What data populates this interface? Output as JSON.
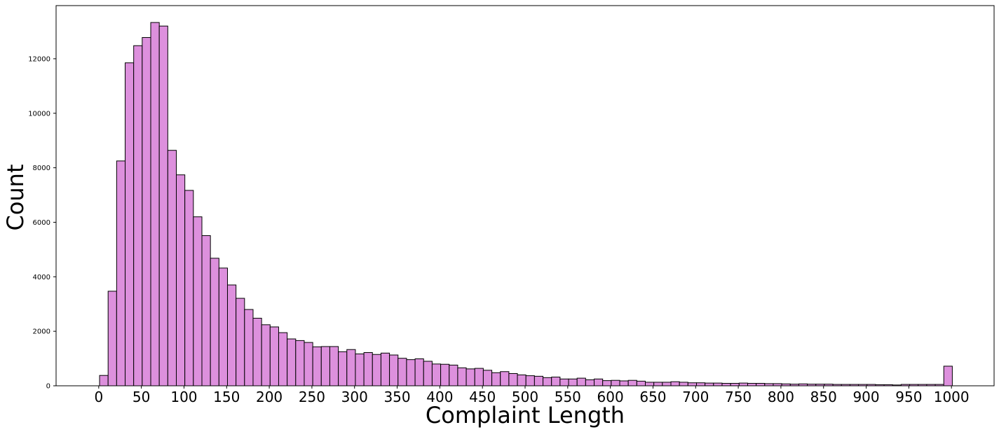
{
  "chart_data": {
    "type": "bar",
    "title": "",
    "xlabel": "Complaint Length",
    "ylabel": "Count",
    "xlim": [
      -50,
      1050
    ],
    "ylim": [
      0,
      13950
    ],
    "grid": false,
    "legend": "none",
    "bar_color": "#dd90dd",
    "edge_color": "#000000",
    "bin_width": 10,
    "bin_start": 1,
    "xticks": [
      0,
      50,
      100,
      150,
      200,
      250,
      300,
      350,
      400,
      450,
      500,
      550,
      600,
      650,
      700,
      750,
      800,
      850,
      900,
      950,
      1000
    ],
    "yticks": [
      0,
      2000,
      4000,
      6000,
      8000,
      10000,
      12000
    ],
    "values": [
      380,
      3470,
      8250,
      11850,
      12480,
      12780,
      13330,
      13200,
      8640,
      7740,
      7170,
      6200,
      5510,
      4680,
      4320,
      3700,
      3210,
      2800,
      2480,
      2240,
      2160,
      1950,
      1720,
      1660,
      1590,
      1430,
      1440,
      1440,
      1250,
      1330,
      1170,
      1220,
      1150,
      1200,
      1130,
      1010,
      960,
      990,
      900,
      800,
      790,
      760,
      660,
      620,
      640,
      570,
      480,
      520,
      450,
      400,
      370,
      350,
      300,
      320,
      250,
      250,
      280,
      220,
      250,
      190,
      200,
      180,
      200,
      170,
      130,
      130,
      130,
      150,
      130,
      110,
      110,
      100,
      100,
      90,
      90,
      100,
      90,
      90,
      80,
      80,
      70,
      60,
      70,
      60,
      60,
      60,
      50,
      50,
      50,
      50,
      50,
      40,
      40,
      30,
      50,
      50,
      50,
      50,
      50,
      720
    ]
  }
}
